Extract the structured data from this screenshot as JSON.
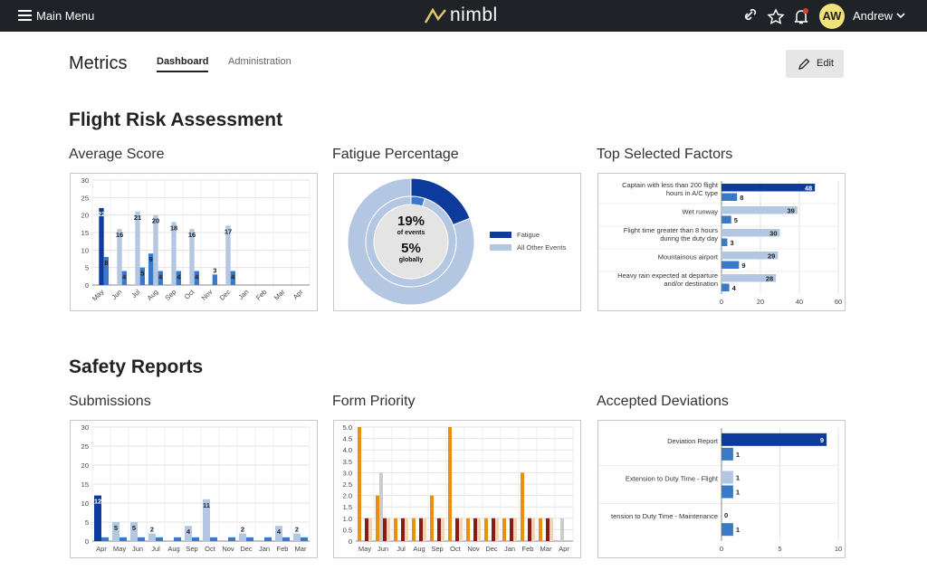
{
  "header": {
    "menu": "Main Menu",
    "logo": "nimbl",
    "avatar": "AW",
    "user": "Andrew"
  },
  "page": {
    "title": "Metrics",
    "tabs": [
      "Dashboard",
      "Administration"
    ],
    "edit": "Edit"
  },
  "sections": [
    {
      "title": "Flight Risk Assessment",
      "charts": [
        {
          "type": "bar",
          "title": "Average Score",
          "rotate_labels": true,
          "grid": true,
          "categories": [
            "May",
            "Jun",
            "Jul",
            "Aug",
            "Sep",
            "Oct",
            "Nov",
            "Dec",
            "Jan",
            "Feb",
            "Mar",
            "Apr"
          ],
          "ylim": [
            0,
            30
          ],
          "yticks": [
            0,
            5,
            10,
            15,
            20,
            25,
            30
          ],
          "series": [
            {
              "color": "#3a78c9",
              "labels": true,
              "values": [
                null,
                null,
                null,
                9,
                null,
                null,
                null,
                null,
                null,
                null,
                null,
                null
              ]
            },
            {
              "color": "#b3c7e3",
              "colors": [
                "#0d3b9c",
                "#b3c7e3",
                "#b3c7e3",
                "#b3c7e3",
                "#b3c7e3",
                "#b3c7e3",
                "#b3c7e3",
                "#b3c7e3",
                "#b3c7e3",
                "#b3c7e3",
                "#b3c7e3",
                "#b3c7e3"
              ],
              "labels": true,
              "values": [
                22,
                16,
                21,
                20,
                18,
                16,
                null,
                17,
                null,
                null,
                null,
                null
              ]
            },
            {
              "color": "#3a78c9",
              "labels": true,
              "values": [
                8,
                4,
                5,
                4,
                4,
                4,
                3,
                4,
                null,
                null,
                null,
                null
              ]
            }
          ]
        },
        {
          "type": "donut",
          "title": "Fatigue Percentage",
          "legend": [
            "Fatigue",
            "All Other Events"
          ],
          "rings": [
            {
              "values": [
                19,
                81
              ],
              "colors": [
                "#0d3b9c",
                "#b3c7e3"
              ],
              "center_label": "19%",
              "caption": "of events"
            },
            {
              "values": [
                5,
                95
              ],
              "colors": [
                "#3a78c9",
                "#b3c7e3"
              ],
              "center_label": "5%",
              "caption": "globally"
            }
          ]
        },
        {
          "type": "hbar",
          "title": "Top Selected Factors",
          "grid": true,
          "categories": [
            [
              "Captain with less than 200 flight",
              "hours in A/C type"
            ],
            [
              "Wet runway"
            ],
            [
              "Flight time greater than 8 hours",
              "during the duty day"
            ],
            [
              "Mountainous airport"
            ],
            [
              "Heavy rain expected at departure",
              "and/or destination"
            ]
          ],
          "xlim": [
            0,
            60
          ],
          "xticks": [
            0,
            20,
            40,
            60
          ],
          "series": [
            {
              "color": "#b3c7e3",
              "colors": [
                "#0d3b9c",
                "#b3c7e3",
                "#b3c7e3",
                "#b3c7e3",
                "#b3c7e3"
              ],
              "values": [
                48,
                39,
                30,
                29,
                28
              ]
            },
            {
              "color": "#3a78c9",
              "values": [
                8,
                5,
                3,
                9,
                4
              ]
            }
          ]
        }
      ]
    },
    {
      "title": "Safety Reports",
      "charts": [
        {
          "type": "bar",
          "title": "Submissions",
          "rotate_labels": false,
          "grid": true,
          "categories": [
            "Apr",
            "May",
            "Jun",
            "Jul",
            "Aug",
            "Sep",
            "Oct",
            "Nov",
            "Dec",
            "Jan",
            "Feb",
            "Mar"
          ],
          "ylim": [
            0,
            30
          ],
          "yticks": [
            0,
            5,
            10,
            15,
            20,
            25,
            30
          ],
          "series": [
            {
              "color": "#b3c7e3",
              "colors": [
                "#0d3b9c",
                "#b3c7e3",
                "#b3c7e3",
                "#b3c7e3",
                "#b3c7e3",
                "#b3c7e3",
                "#b3c7e3",
                "#b3c7e3",
                "#b3c7e3",
                "#b3c7e3",
                "#b3c7e3",
                "#b3c7e3"
              ],
              "labels": true,
              "values": [
                12,
                5,
                5,
                2,
                null,
                4,
                11,
                null,
                2,
                null,
                4,
                2
              ]
            },
            {
              "color": "#3a78c9",
              "labels": false,
              "values": [
                1,
                1,
                1,
                1,
                1,
                1,
                1,
                1,
                1,
                1,
                1,
                1
              ]
            }
          ]
        },
        {
          "type": "bar",
          "title": "Form Priority",
          "rotate_labels": false,
          "grid": true,
          "categories": [
            "May",
            "Jun",
            "Jul",
            "Aug",
            "Sep",
            "Oct",
            "Nov",
            "Dec",
            "Jan",
            "Feb",
            "Mar",
            "Apr"
          ],
          "ylim": [
            0,
            5
          ],
          "yticks": [
            0,
            0.5,
            {
              "value": 1,
              "label": "1.0"
            },
            1.5,
            {
              "value": 2,
              "label": "2.0"
            },
            2.5,
            {
              "value": 3,
              "label": "3.0"
            },
            3.5,
            {
              "value": 4,
              "label": "4.0"
            },
            4.5,
            {
              "value": 5,
              "label": "5.0"
            }
          ],
          "series": [
            {
              "color": "#e8900f",
              "labels": false,
              "values": [
                5,
                2,
                1,
                1,
                2,
                5,
                1,
                1,
                1,
                3,
                1,
                null
              ]
            },
            {
              "color": "#cccccc",
              "labels": false,
              "values": [
                null,
                3,
                null,
                null,
                null,
                null,
                null,
                null,
                null,
                null,
                null,
                1
              ]
            },
            {
              "color": "#8b1a1a",
              "labels": false,
              "values": [
                1,
                1,
                1,
                1,
                1,
                1,
                1,
                1,
                1,
                1,
                1,
                null
              ]
            },
            {
              "color": "#e8d9b0",
              "labels": false,
              "values": [
                1,
                1,
                1,
                1,
                1,
                1,
                1,
                1,
                1,
                1,
                1,
                null
              ]
            }
          ]
        },
        {
          "type": "hbar",
          "title": "Accepted Deviations",
          "grid": true,
          "categories": [
            [
              "Deviation Report"
            ],
            [
              "Extension to Duty Time - Flight"
            ],
            [
              "tension to Duty Time - Maintenance"
            ]
          ],
          "xlim": [
            0,
            10
          ],
          "xticks": [
            0,
            5,
            10
          ],
          "series": [
            {
              "color": "#b3c7e3",
              "colors": [
                "#0d3b9c",
                "#b3c7e3",
                "#b3c7e3"
              ],
              "values": [
                9,
                1,
                0
              ]
            },
            {
              "color": "#3a78c9",
              "values": [
                1,
                1,
                1
              ]
            }
          ]
        }
      ]
    }
  ]
}
